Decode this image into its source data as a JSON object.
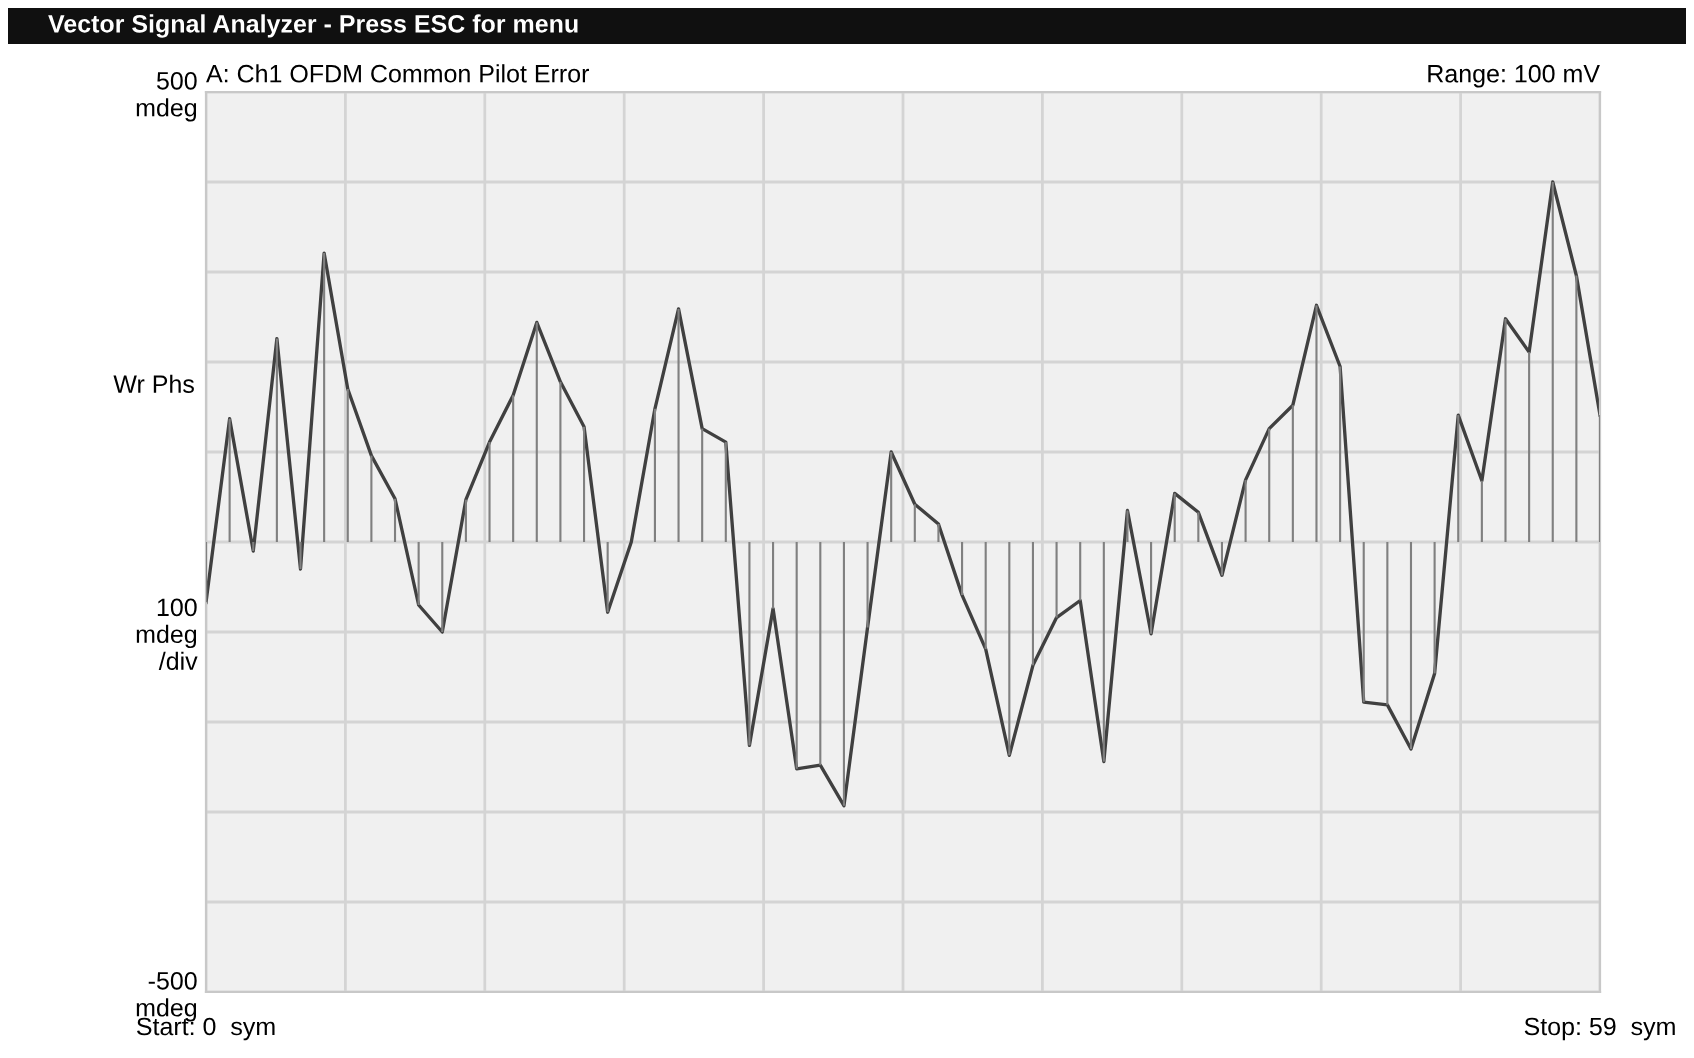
{
  "chart_data": {
    "type": "line",
    "title": "A: Ch1 OFDM Common Pilot Error",
    "ylabel": "Wr Phs",
    "annotations": [
      "Vector Signal Analyzer - Press ESC for menu",
      "Range: 100 mV"
    ],
    "x": [
      0,
      1,
      2,
      3,
      4,
      5,
      6,
      7,
      8,
      9,
      10,
      11,
      12,
      13,
      14,
      15,
      16,
      17,
      18,
      19,
      20,
      21,
      22,
      23,
      24,
      25,
      26,
      27,
      28,
      29,
      30,
      31,
      32,
      33,
      34,
      35,
      36,
      37,
      38,
      39,
      40,
      41,
      42,
      43,
      44,
      45,
      46,
      47,
      48,
      49,
      50,
      51,
      52,
      53,
      54,
      55,
      56,
      57,
      58,
      59
    ],
    "series": [
      {
        "color": "#404040",
        "values": [
          -67,
          137,
          -10,
          226,
          -30,
          321,
          170,
          96,
          48,
          -70,
          -100,
          47,
          111,
          163,
          244,
          178,
          128,
          -78,
          0,
          148,
          259,
          126,
          111,
          -226,
          -74,
          -252,
          -248,
          -293,
          -95,
          100,
          42,
          20,
          -59,
          -119,
          -237,
          -137,
          -84,
          -65,
          -244,
          35,
          -102,
          54,
          33,
          -37,
          69,
          126,
          152,
          263,
          195,
          -178,
          -181,
          -230,
          -146,
          141,
          68,
          248,
          211,
          400,
          296,
          141
        ]
      },
      {
        "type": "bar",
        "color": "#808080",
        "values": [
          -67,
          137,
          -10,
          226,
          -30,
          321,
          170,
          96,
          48,
          -70,
          -100,
          47,
          111,
          163,
          244,
          178,
          128,
          -78,
          0,
          148,
          259,
          126,
          111,
          -226,
          -74,
          -252,
          -248,
          -293,
          -95,
          100,
          42,
          20,
          -59,
          -119,
          -237,
          -137,
          -84,
          -65,
          -244,
          35,
          -102,
          54,
          33,
          -37,
          69,
          126,
          152,
          263,
          195,
          -178,
          -181,
          -230,
          -146,
          141,
          68,
          248,
          211,
          400,
          296,
          141
        ]
      }
    ],
    "xlim": [
      0,
      59
    ],
    "xticks": [
      {
        "value": 0,
        "label": "Start: 0  sym"
      },
      {
        "value": 5.9,
        "label": null
      },
      {
        "value": 11.8,
        "label": null
      },
      {
        "value": 17.7,
        "label": null
      },
      {
        "value": 23.6,
        "label": null
      },
      {
        "value": 29.5,
        "label": null
      },
      {
        "value": 35.4,
        "label": null
      },
      {
        "value": 41.3,
        "label": null
      },
      {
        "value": 47.2,
        "label": null
      },
      {
        "value": 53.1,
        "label": null
      },
      {
        "value": 59,
        "label": "Stop: 59  sym"
      }
    ],
    "ylim": [
      -500,
      500
    ],
    "yticks": [
      {
        "value": -500,
        "label": "-500\nmdeg"
      },
      {
        "value": -400,
        "label": null
      },
      {
        "value": -300,
        "label": null
      },
      {
        "value": -200,
        "label": null
      },
      {
        "value": -100,
        "label": "100\nmdeg\n/div"
      },
      {
        "value": 0,
        "label": null
      },
      {
        "value": 100,
        "label": null
      },
      {
        "value": 200,
        "label": null
      },
      {
        "value": 300,
        "label": null
      },
      {
        "value": 400,
        "label": null
      },
      {
        "value": 500,
        "label": "500\nmdeg"
      }
    ],
    "grid": true,
    "marker": "none",
    "line_style": "solid"
  }
}
